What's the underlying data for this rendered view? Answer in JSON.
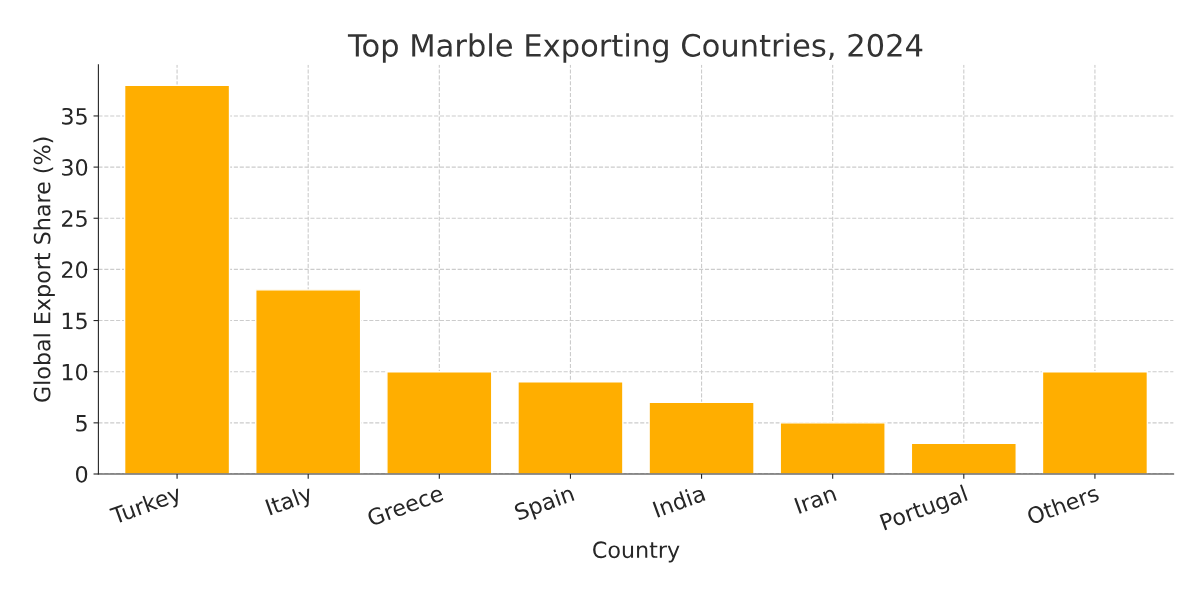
{
  "chart_data": {
    "type": "bar",
    "title": "Top Marble Exporting Countries, 2024",
    "xlabel": "Country",
    "ylabel": "Global Export Share (%)",
    "categories": [
      "Turkey",
      "Italy",
      "Greece",
      "Spain",
      "India",
      "Iran",
      "Portugal",
      "Others"
    ],
    "values": [
      38,
      18,
      10,
      9,
      7,
      5,
      3,
      10
    ],
    "color": "#ffae00",
    "ylim": [
      0,
      40
    ],
    "yticks": [
      0,
      5,
      10,
      15,
      20,
      25,
      30,
      35
    ],
    "grid": true
  }
}
